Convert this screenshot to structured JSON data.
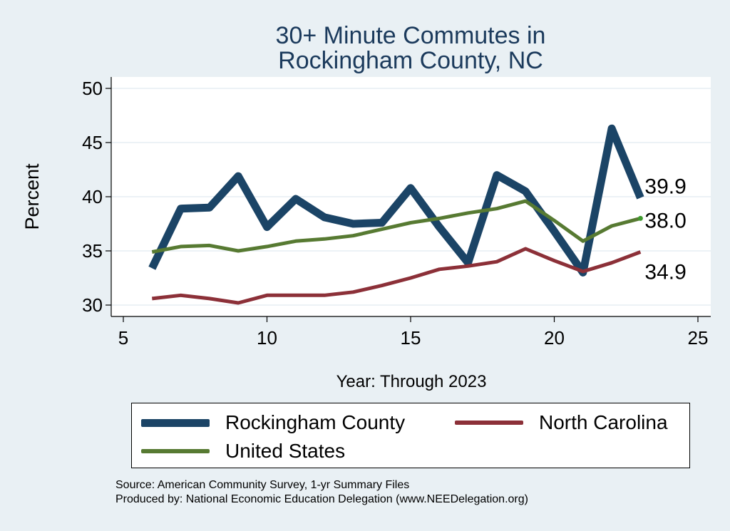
{
  "chart_data": {
    "type": "line",
    "title": [
      "30+ Minute Commutes in",
      "Rockingham County, NC"
    ],
    "xlabel": "Year: Through 2023",
    "ylabel": "Percent",
    "xlim": [
      5,
      25
    ],
    "ylim": [
      30,
      50
    ],
    "xticks": [
      5,
      10,
      15,
      20,
      25
    ],
    "yticks": [
      30,
      35,
      40,
      45,
      50
    ],
    "grid": "horizontal",
    "series": [
      {
        "name": "Rockingham County",
        "color": "#1b4466",
        "x": [
          6,
          7,
          8,
          9,
          10,
          11,
          12,
          13,
          14,
          15,
          16,
          17,
          18,
          19,
          20,
          21,
          22,
          23
        ],
        "values": [
          33.4,
          38.9,
          39.0,
          41.9,
          37.2,
          39.8,
          38.1,
          37.5,
          37.6,
          40.8,
          37.2,
          33.9,
          42.0,
          40.5,
          36.8,
          33.0,
          46.3,
          39.9
        ],
        "end_label": "39.9"
      },
      {
        "name": "North Carolina",
        "color": "#8c3038",
        "x": [
          6,
          7,
          8,
          9,
          10,
          11,
          12,
          13,
          14,
          15,
          16,
          17,
          18,
          19,
          20,
          21,
          22,
          23
        ],
        "values": [
          30.6,
          30.9,
          30.6,
          30.2,
          30.9,
          30.9,
          30.9,
          31.2,
          31.8,
          32.5,
          33.3,
          33.6,
          34.0,
          35.2,
          34.1,
          33.1,
          33.9,
          34.9
        ],
        "end_label": "34.9"
      },
      {
        "name": "United States",
        "color": "#577a32",
        "x": [
          6,
          7,
          8,
          9,
          10,
          11,
          12,
          13,
          14,
          15,
          16,
          17,
          18,
          19,
          20,
          21,
          22,
          23
        ],
        "values": [
          34.9,
          35.4,
          35.5,
          35.0,
          35.4,
          35.9,
          36.1,
          36.4,
          37.0,
          37.6,
          38.0,
          38.5,
          38.9,
          39.6,
          37.8,
          35.9,
          37.3,
          38.0
        ],
        "end_label": "38.0"
      }
    ],
    "legend": {
      "position": "bottom"
    }
  },
  "footer": {
    "source": "Source: American Community Survey, 1-yr Summary Files",
    "producer": "Produced by: National Economic Education Delegation (www.NEEDelegation.org)"
  }
}
